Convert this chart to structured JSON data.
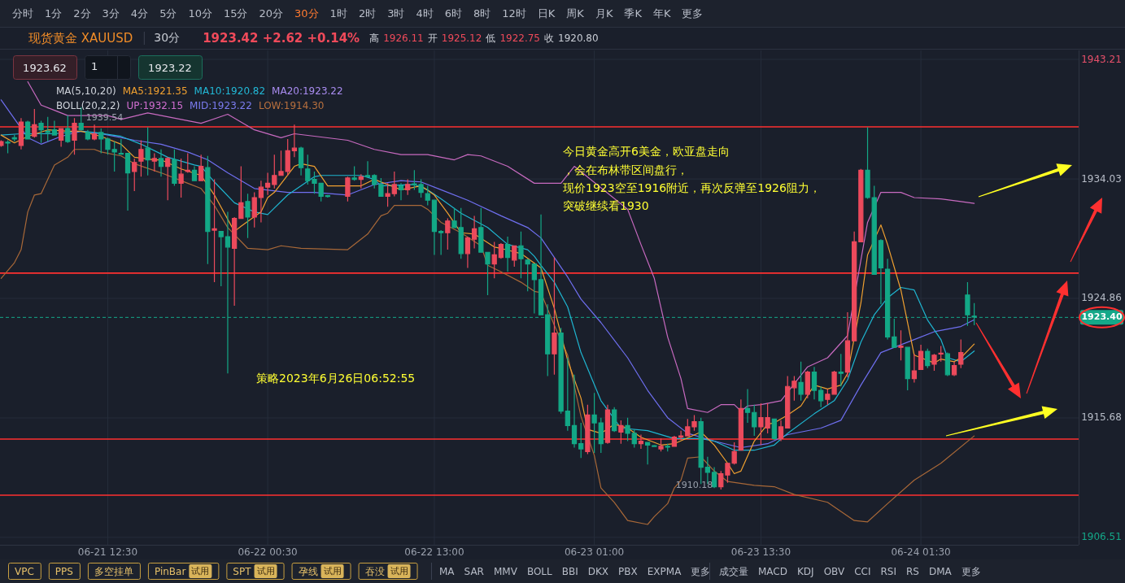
{
  "chart_data": {
    "type": "candlestick",
    "title": "现货黄金 XAUUSD",
    "subtitle": "30分",
    "grid": true,
    "xlim": [
      "2023-06-21T04:25",
      "2023-06-24T13:20"
    ],
    "ylim": [
      1905.94,
      1943.9
    ],
    "xticks": [
      {
        "value": "2023-06-21T12:30",
        "label": "06-21 12:30"
      },
      {
        "value": "2023-06-22T00:30",
        "label": "06-22 00:30"
      },
      {
        "value": "2023-06-22T13:00",
        "label": "06-22 13:00"
      },
      {
        "value": "2023-06-23T01:00",
        "label": "06-23 01:00"
      },
      {
        "value": "2023-06-23T13:30",
        "label": "06-23 13:30"
      },
      {
        "value": "2023-06-24T01:30",
        "label": "06-24 01:30"
      }
    ],
    "yticks": [
      1943.21,
      1934.03,
      1924.86,
      1915.68,
      1906.51
    ],
    "x": [
      "2023-06-21T04:30",
      "2023-06-21T05:00",
      "2023-06-21T05:30",
      "2023-06-21T06:00",
      "2023-06-21T06:30",
      "2023-06-21T07:00",
      "2023-06-21T07:30",
      "2023-06-21T08:00",
      "2023-06-21T08:30",
      "2023-06-21T09:00",
      "2023-06-21T09:30",
      "2023-06-21T10:00",
      "2023-06-21T10:30",
      "2023-06-21T11:00",
      "2023-06-21T11:30",
      "2023-06-21T12:00",
      "2023-06-21T12:30",
      "2023-06-21T13:00",
      "2023-06-21T13:30",
      "2023-06-21T14:00",
      "2023-06-21T14:30",
      "2023-06-21T15:00",
      "2023-06-21T15:30",
      "2023-06-21T16:00",
      "2023-06-21T16:30",
      "2023-06-21T17:00",
      "2023-06-21T17:30",
      "2023-06-21T18:00",
      "2023-06-21T18:30",
      "2023-06-21T19:00",
      "2023-06-21T19:30",
      "2023-06-21T20:00",
      "2023-06-21T20:30",
      "2023-06-21T21:00",
      "2023-06-21T21:30",
      "2023-06-21T22:00",
      "2023-06-21T22:30",
      "2023-06-21T23:00",
      "2023-06-21T23:30",
      "2023-06-22T00:00",
      "2023-06-22T00:30",
      "2023-06-22T01:00",
      "2023-06-22T01:30",
      "2023-06-22T02:00",
      "2023-06-22T02:30",
      "2023-06-22T03:00",
      "2023-06-22T03:30",
      "2023-06-22T04:00",
      "2023-06-22T04:30",
      "2023-06-22T05:00",
      "2023-06-22T06:30",
      "2023-06-22T07:00",
      "2023-06-22T07:30",
      "2023-06-22T08:00",
      "2023-06-22T08:30",
      "2023-06-22T09:00",
      "2023-06-22T09:30",
      "2023-06-22T10:00",
      "2023-06-22T10:30",
      "2023-06-22T11:00",
      "2023-06-22T11:30",
      "2023-06-22T12:00",
      "2023-06-22T12:30",
      "2023-06-22T13:00",
      "2023-06-22T13:30",
      "2023-06-22T14:00",
      "2023-06-22T14:30",
      "2023-06-22T15:00",
      "2023-06-22T15:30",
      "2023-06-22T16:00",
      "2023-06-22T16:30",
      "2023-06-22T17:00",
      "2023-06-22T17:30",
      "2023-06-22T18:00",
      "2023-06-22T18:30",
      "2023-06-22T19:00",
      "2023-06-22T19:30",
      "2023-06-22T20:00",
      "2023-06-22T20:30",
      "2023-06-22T21:00",
      "2023-06-22T21:30",
      "2023-06-22T22:00",
      "2023-06-22T22:30",
      "2023-06-22T23:00",
      "2023-06-22T23:30",
      "2023-06-23T00:00",
      "2023-06-23T00:30",
      "2023-06-23T01:00",
      "2023-06-23T01:30",
      "2023-06-23T02:00",
      "2023-06-23T02:30",
      "2023-06-23T03:00",
      "2023-06-23T03:30",
      "2023-06-23T04:00",
      "2023-06-23T04:30",
      "2023-06-23T05:00",
      "2023-06-23T05:30",
      "2023-06-23T06:00",
      "2023-06-23T06:30",
      "2023-06-23T07:00",
      "2023-06-23T07:30",
      "2023-06-23T08:00",
      "2023-06-23T08:30",
      "2023-06-23T09:00",
      "2023-06-23T09:30",
      "2023-06-23T10:00",
      "2023-06-23T10:30",
      "2023-06-23T11:00",
      "2023-06-23T11:30",
      "2023-06-23T12:00",
      "2023-06-23T12:30",
      "2023-06-23T13:00",
      "2023-06-23T13:30",
      "2023-06-23T14:00",
      "2023-06-23T14:30",
      "2023-06-23T15:00",
      "2023-06-23T15:30",
      "2023-06-23T16:00",
      "2023-06-23T16:30",
      "2023-06-23T17:00",
      "2023-06-23T17:30",
      "2023-06-23T18:00",
      "2023-06-23T18:30",
      "2023-06-23T19:00",
      "2023-06-23T19:30",
      "2023-06-23T20:00",
      "2023-06-23T20:30",
      "2023-06-23T21:00",
      "2023-06-23T21:30",
      "2023-06-23T22:00",
      "2023-06-23T22:30",
      "2023-06-23T23:00",
      "2023-06-23T23:30",
      "2023-06-24T00:00",
      "2023-06-24T00:30",
      "2023-06-24T01:00",
      "2023-06-24T01:30",
      "2023-06-24T02:00",
      "2023-06-24T02:30",
      "2023-06-24T03:00",
      "2023-06-24T03:30",
      "2023-06-24T04:00",
      "2023-06-24T04:30",
      "2023-06-24T05:00",
      "2023-06-24T05:30"
    ],
    "ohlc": [
      [
        1936.6,
        1937.0,
        1936.5,
        1936.9
      ],
      [
        1936.85,
        1937.0,
        1936.0,
        1936.8
      ],
      [
        1937.2,
        1937.4,
        1936.9,
        1937.1
      ],
      [
        1936.6,
        1938.7,
        1936.3,
        1938.4
      ],
      [
        1938.4,
        1938.5,
        1937.1,
        1937.1
      ],
      [
        1937.3,
        1939.4,
        1937.2,
        1938.2
      ],
      [
        1938.3,
        1938.5,
        1936.8,
        1937.8
      ],
      [
        1937.7,
        1938.8,
        1936.9,
        1937.6
      ],
      [
        1937.8,
        1938.5,
        1937.4,
        1937.4
      ],
      [
        1937.0,
        1937.9,
        1936.5,
        1937.9
      ],
      [
        1937.9,
        1938.9,
        1936.8,
        1936.9
      ],
      [
        1937.0,
        1938.7,
        1935.9,
        1938.3
      ],
      [
        1938.3,
        1939.54,
        1937.8,
        1937.8
      ],
      [
        1937.6,
        1937.8,
        1937.0,
        1937.1
      ],
      [
        1937.1,
        1938.2,
        1937.0,
        1937.5
      ],
      [
        1937.6,
        1937.9,
        1936.0,
        1937.1
      ],
      [
        1937.1,
        1937.2,
        1935.9,
        1936.3
      ],
      [
        1936.3,
        1936.9,
        1934.6,
        1936.1
      ],
      [
        1936.0,
        1937.1,
        1935.9,
        1935.95
      ],
      [
        1936.0,
        1936.0,
        1931.6,
        1934.5
      ],
      [
        1934.6,
        1935.6,
        1933.1,
        1935.3
      ],
      [
        1935.4,
        1937.0,
        1934.2,
        1936.3
      ],
      [
        1936.4,
        1938.0,
        1934.3,
        1935.5
      ],
      [
        1935.4,
        1936.0,
        1934.6,
        1935.6
      ],
      [
        1935.6,
        1936.3,
        1934.2,
        1935.0
      ],
      [
        1935.0,
        1935.7,
        1932.4,
        1935.6
      ],
      [
        1935.5,
        1936.3,
        1933.5,
        1933.7
      ],
      [
        1933.7,
        1935.6,
        1932.6,
        1934.4
      ],
      [
        1934.6,
        1936.0,
        1934.5,
        1934.7
      ],
      [
        1934.7,
        1935.0,
        1933.9,
        1933.9
      ],
      [
        1933.9,
        1935.9,
        1933.9,
        1935.0
      ],
      [
        1934.9,
        1935.8,
        1927.5,
        1930.0
      ],
      [
        1930.1,
        1934.0,
        1926.1,
        1930.2
      ],
      [
        1930.0,
        1930.0,
        1925.8,
        1929.6
      ],
      [
        1929.6,
        1931.5,
        1919.1,
        1928.8
      ],
      [
        1928.7,
        1931.1,
        1924.3,
        1931.0
      ],
      [
        1931.0,
        1935.0,
        1931.0,
        1932.2
      ],
      [
        1932.3,
        1932.9,
        1929.5,
        1931.1
      ],
      [
        1931.1,
        1933.0,
        1930.3,
        1932.6
      ],
      [
        1932.6,
        1933.9,
        1930.7,
        1933.4
      ],
      [
        1933.4,
        1934.5,
        1932.8,
        1933.7
      ],
      [
        1933.6,
        1935.9,
        1933.3,
        1934.3
      ],
      [
        1934.3,
        1936.2,
        1934.3,
        1934.6
      ],
      [
        1934.6,
        1937.1,
        1934.3,
        1936.2
      ],
      [
        1936.2,
        1938.2,
        1935.7,
        1936.4
      ],
      [
        1936.4,
        1936.5,
        1934.3,
        1934.9
      ],
      [
        1934.8,
        1935.9,
        1933.6,
        1933.9
      ],
      [
        1934.0,
        1934.6,
        1932.9,
        1933.7
      ],
      [
        1933.7,
        1933.7,
        1932.3,
        1932.7
      ],
      [
        1932.75,
        1932.8,
        1932.6,
        1932.7
      ],
      [
        1932.7,
        1934.2,
        1932.3,
        1934.1
      ],
      [
        1934.1,
        1935.0,
        1933.9,
        1934.0
      ],
      [
        1934.0,
        1934.4,
        1933.3,
        1934.2
      ],
      [
        1934.3,
        1935.4,
        1934.2,
        1934.2
      ],
      [
        1934.3,
        1934.4,
        1933.3,
        1933.6
      ],
      [
        1933.6,
        1934.1,
        1932.7,
        1932.7
      ],
      [
        1932.7,
        1933.7,
        1931.9,
        1932.9
      ],
      [
        1932.9,
        1934.6,
        1932.7,
        1933.6
      ],
      [
        1933.5,
        1933.7,
        1932.4,
        1933.2
      ],
      [
        1933.2,
        1934.0,
        1932.8,
        1933.6
      ],
      [
        1933.65,
        1934.7,
        1933.2,
        1933.6
      ],
      [
        1933.6,
        1934.0,
        1932.6,
        1933.0
      ],
      [
        1932.9,
        1933.5,
        1932.0,
        1932.4
      ],
      [
        1932.4,
        1932.4,
        1928.2,
        1930.0
      ],
      [
        1930.0,
        1930.1,
        1928.2,
        1929.9
      ],
      [
        1929.9,
        1931.0,
        1928.6,
        1930.8
      ],
      [
        1930.8,
        1931.8,
        1930.3,
        1930.3
      ],
      [
        1930.3,
        1931.8,
        1927.9,
        1928.3
      ],
      [
        1928.3,
        1929.6,
        1927.2,
        1929.5
      ],
      [
        1929.4,
        1931.2,
        1928.7,
        1930.2
      ],
      [
        1930.3,
        1931.8,
        1928.4,
        1928.4
      ],
      [
        1928.4,
        1928.4,
        1925.1,
        1927.5
      ],
      [
        1927.5,
        1929.2,
        1926.4,
        1928.2
      ],
      [
        1928.0,
        1929.1,
        1927.9,
        1929.0
      ],
      [
        1929.0,
        1929.6,
        1926.9,
        1928.0
      ],
      [
        1927.8,
        1928.9,
        1927.3,
        1928.9
      ],
      [
        1928.9,
        1930.0,
        1926.4,
        1927.9
      ],
      [
        1927.8,
        1927.9,
        1925.4,
        1927.5
      ],
      [
        1927.5,
        1927.5,
        1923.7,
        1926.3
      ],
      [
        1926.3,
        1931.3,
        1923.6,
        1923.6
      ],
      [
        1923.6,
        1924.4,
        1918.9,
        1920.6
      ],
      [
        1920.6,
        1928.0,
        1919.0,
        1922.2
      ],
      [
        1922.2,
        1922.6,
        1916.0,
        1916.2
      ],
      [
        1916.2,
        1920.3,
        1914.7,
        1915.1
      ],
      [
        1915.1,
        1919.0,
        1913.4,
        1913.7
      ],
      [
        1913.7,
        1915.3,
        1912.6,
        1913.3
      ],
      [
        1913.1,
        1916.7,
        1912.9,
        1915.9
      ],
      [
        1915.9,
        1917.6,
        1913.0,
        1915.3
      ],
      [
        1915.3,
        1915.7,
        1913.0,
        1913.7
      ],
      [
        1913.8,
        1916.7,
        1913.7,
        1916.3
      ],
      [
        1916.3,
        1916.5,
        1914.6,
        1914.7
      ],
      [
        1914.6,
        1915.5,
        1913.7,
        1915.1
      ],
      [
        1915.1,
        1915.7,
        1913.9,
        1914.5
      ],
      [
        1914.5,
        1914.8,
        1913.4,
        1913.7
      ],
      [
        1913.7,
        1914.4,
        1913.3,
        1913.9
      ],
      [
        1913.8,
        1913.8,
        1912.1,
        1913.6
      ],
      [
        1913.55,
        1913.6,
        1913.5,
        1913.5
      ],
      [
        1913.3,
        1914.1,
        1913.1,
        1913.5
      ],
      [
        1913.5,
        1913.7,
        1913.1,
        1913.45
      ],
      [
        1913.5,
        1914.3,
        1913.5,
        1914.2
      ],
      [
        1914.2,
        1914.7,
        1914.0,
        1914.3
      ],
      [
        1914.3,
        1915.6,
        1914.3,
        1915.0
      ],
      [
        1915.0,
        1915.9,
        1914.7,
        1915.4
      ],
      [
        1915.4,
        1915.7,
        1910.6,
        1911.9
      ],
      [
        1911.9,
        1912.7,
        1910.6,
        1911.5
      ],
      [
        1911.5,
        1911.9,
        1910.3,
        1910.4
      ],
      [
        1910.4,
        1911.6,
        1910.18,
        1911.4
      ],
      [
        1911.3,
        1912.2,
        1910.7,
        1912.2
      ],
      [
        1912.2,
        1913.8,
        1912.1,
        1913.1
      ],
      [
        1913.2,
        1917.1,
        1913.2,
        1916.4
      ],
      [
        1916.4,
        1917.9,
        1915.3,
        1916.1
      ],
      [
        1916.1,
        1916.7,
        1914.3,
        1915.0
      ],
      [
        1915.0,
        1916.8,
        1913.6,
        1915.7
      ],
      [
        1914.9,
        1916.8,
        1914.5,
        1915.7
      ],
      [
        1915.6,
        1915.6,
        1914.0,
        1914.1
      ],
      [
        1914.1,
        1915.5,
        1913.9,
        1915.0
      ],
      [
        1914.9,
        1918.9,
        1914.9,
        1918.1
      ],
      [
        1918.0,
        1918.9,
        1917.0,
        1918.5
      ],
      [
        1918.4,
        1920.0,
        1917.0,
        1917.5
      ],
      [
        1917.5,
        1919.3,
        1917.2,
        1919.2
      ],
      [
        1919.2,
        1919.6,
        1917.1,
        1917.8
      ],
      [
        1917.8,
        1918.1,
        1916.5,
        1917.0
      ],
      [
        1917.1,
        1917.9,
        1916.7,
        1917.5
      ],
      [
        1917.5,
        1919.3,
        1917.5,
        1919.2
      ],
      [
        1919.2,
        1920.6,
        1918.1,
        1919.1
      ],
      [
        1919.2,
        1923.8,
        1918.8,
        1921.6
      ],
      [
        1921.6,
        1930.0,
        1921.6,
        1929.2
      ],
      [
        1929.2,
        1934.8,
        1929.2,
        1934.7
      ],
      [
        1934.7,
        1938.0,
        1932.5,
        1932.6
      ],
      [
        1932.6,
        1933.5,
        1926.7,
        1926.7
      ],
      [
        1929.3,
        1929.4,
        1924.4,
        1927.2
      ],
      [
        1927.1,
        1927.9,
        1921.7,
        1921.9
      ],
      [
        1921.9,
        1923.3,
        1921.1,
        1921.1
      ],
      [
        1921.1,
        1922.4,
        1920.1,
        1921.2
      ],
      [
        1921.1,
        1921.1,
        1917.8,
        1918.7
      ],
      [
        1918.7,
        1920.6,
        1918.4,
        1919.3
      ],
      [
        1919.4,
        1921.3,
        1919.4,
        1920.8
      ],
      [
        1920.8,
        1921.0,
        1919.5,
        1919.7
      ],
      [
        1919.8,
        1920.6,
        1919.3,
        1920.5
      ],
      [
        1920.6,
        1921.2,
        1920.0,
        1920.65
      ],
      [
        1920.6,
        1920.7,
        1918.9,
        1919.0
      ],
      [
        1919.0,
        1920.0,
        1918.9,
        1919.7
      ],
      [
        1919.8,
        1921.7,
        1919.5,
        1920.7
      ],
      [
        1925.12,
        1926.11,
        1922.75,
        1923.6
      ],
      [
        1923.5,
        1924.5,
        1922.8,
        1923.42
      ]
    ],
    "series": [
      {
        "type": "line",
        "color": "#c86ac0",
        "x": [
          "2023-06-21T06:30",
          "2023-06-21T07:30",
          "2023-06-21T08:30",
          "2023-06-21T09:30",
          "2023-06-21T12:30",
          "2023-06-21T13:30",
          "2023-06-21T15:30",
          "2023-06-21T19:30",
          "2023-06-21T21:30",
          "2023-06-21T23:30",
          "2023-06-22T01:30",
          "2023-06-22T02:30",
          "2023-06-22T06:30",
          "2023-06-22T08:30",
          "2023-06-22T10:30",
          "2023-06-22T12:30",
          "2023-06-22T14:30",
          "2023-06-22T15:30",
          "2023-06-22T16:30",
          "2023-06-22T18:30",
          "2023-06-22T20:30",
          "2023-06-22T22:30",
          "2023-06-22T23:30",
          "2023-06-23T03:30",
          "2023-06-23T04:30",
          "2023-06-23T05:30",
          "2023-06-23T06:30",
          "2023-06-23T07:30",
          "2023-06-23T08:00",
          "2023-06-23T09:30",
          "2023-06-23T10:30",
          "2023-06-23T11:30",
          "2023-06-23T12:00",
          "2023-06-23T12:30",
          "2023-06-23T13:30",
          "2023-06-23T15:00",
          "2023-06-23T17:00",
          "2023-06-23T18:30",
          "2023-06-23T20:00",
          "2023-06-23T21:30",
          "2023-06-23T22:30",
          "2023-06-24T00:00",
          "2023-06-24T01:00",
          "2023-06-24T03:00",
          "2023-06-24T04:30",
          "2023-06-24T05:30"
        ],
        "values": [
          1941.5,
          1939.7,
          1939.3,
          1938.9,
          1938.9,
          1938.6,
          1939.1,
          1938.3,
          1939.0,
          1937.8,
          1937.2,
          1937.5,
          1937.0,
          1936.3,
          1935.9,
          1935.9,
          1935.5,
          1935.9,
          1935.8,
          1935.0,
          1933.7,
          1933.7,
          1935.0,
          1931.7,
          1929.0,
          1926.4,
          1921.9,
          1918.7,
          1916.4,
          1916.1,
          1916.7,
          1916.7,
          1916.2,
          1916.6,
          1916.7,
          1917.0,
          1919.6,
          1920.3,
          1922.0,
          1930.7,
          1933.0,
          1933.0,
          1932.6,
          1932.5,
          1932.3,
          1932.15
        ]
      },
      {
        "type": "line",
        "color": "#6f6ff0",
        "x": [
          "2023-06-21T04:30",
          "2023-06-21T06:30",
          "2023-06-21T07:30",
          "2023-06-21T09:00",
          "2023-06-21T10:30",
          "2023-06-21T12:00",
          "2023-06-21T13:00",
          "2023-06-21T14:30",
          "2023-06-21T16:30",
          "2023-06-21T18:30",
          "2023-06-21T20:00",
          "2023-06-21T21:30",
          "2023-06-21T23:30",
          "2023-06-22T02:00",
          "2023-06-22T04:00",
          "2023-06-22T06:30",
          "2023-06-22T08:30",
          "2023-06-22T10:30",
          "2023-06-22T12:00",
          "2023-06-22T13:30",
          "2023-06-22T15:30",
          "2023-06-22T18:00",
          "2023-06-22T20:00",
          "2023-06-22T21:00",
          "2023-06-22T23:00",
          "2023-06-23T00:00",
          "2023-06-23T01:30",
          "2023-06-23T03:30",
          "2023-06-23T05:00",
          "2023-06-23T06:30",
          "2023-06-23T08:00",
          "2023-06-23T10:00",
          "2023-06-23T12:00",
          "2023-06-23T14:00",
          "2023-06-23T15:30",
          "2023-06-23T18:00",
          "2023-06-23T19:30",
          "2023-06-23T21:00",
          "2023-06-23T22:30",
          "2023-06-24T01:00",
          "2023-06-24T02:30",
          "2023-06-24T04:30",
          "2023-06-24T05:30"
        ],
        "values": [
          1940.1,
          1937.2,
          1936.7,
          1937.3,
          1937.7,
          1937.5,
          1937.3,
          1937.0,
          1936.7,
          1936.1,
          1935.5,
          1934.5,
          1933.3,
          1933.0,
          1933.0,
          1932.8,
          1933.6,
          1933.9,
          1933.8,
          1933.2,
          1932.4,
          1931.2,
          1930.3,
          1929.5,
          1926.5,
          1924.8,
          1923.0,
          1920.3,
          1917.8,
          1915.7,
          1914.5,
          1913.9,
          1913.4,
          1913.7,
          1914.4,
          1914.9,
          1915.5,
          1918.2,
          1920.7,
          1921.7,
          1922.3,
          1922.7,
          1923.22
        ]
      },
      {
        "type": "line",
        "color": "#a86838",
        "x": [
          "2023-06-21T04:30",
          "2023-06-21T05:30",
          "2023-06-21T06:00",
          "2023-06-21T06:30",
          "2023-06-21T07:00",
          "2023-06-21T07:30",
          "2023-06-21T08:30",
          "2023-06-21T09:30",
          "2023-06-21T10:00",
          "2023-06-21T11:30",
          "2023-06-21T12:00",
          "2023-06-21T13:30",
          "2023-06-21T14:30",
          "2023-06-21T16:30",
          "2023-06-21T18:30",
          "2023-06-21T19:30",
          "2023-06-21T20:30",
          "2023-06-21T21:30",
          "2023-06-21T23:00",
          "2023-06-22T00:30",
          "2023-06-22T01:30",
          "2023-06-22T03:00",
          "2023-06-22T06:30",
          "2023-06-22T08:00",
          "2023-06-22T09:00",
          "2023-06-22T09:30",
          "2023-06-22T10:00",
          "2023-06-22T12:00",
          "2023-06-22T12:30",
          "2023-06-22T13:30",
          "2023-06-22T15:00",
          "2023-06-22T16:30",
          "2023-06-22T17:00",
          "2023-06-22T18:00",
          "2023-06-22T19:30",
          "2023-06-22T20:30",
          "2023-06-22T21:00",
          "2023-06-22T22:00",
          "2023-06-22T23:00",
          "2023-06-23T00:00",
          "2023-06-23T01:00",
          "2023-06-23T01:30",
          "2023-06-23T02:30",
          "2023-06-23T03:30",
          "2023-06-23T05:00",
          "2023-06-23T05:30",
          "2023-06-23T06:30",
          "2023-06-23T07:00",
          "2023-06-23T07:30",
          "2023-06-23T08:00",
          "2023-06-23T09:00",
          "2023-06-23T10:00",
          "2023-06-23T11:00",
          "2023-06-23T13:00",
          "2023-06-23T14:30",
          "2023-06-23T16:00",
          "2023-06-23T18:30",
          "2023-06-23T20:30",
          "2023-06-23T21:30",
          "2023-06-23T23:00",
          "2023-06-24T01:00",
          "2023-06-24T03:00",
          "2023-06-24T05:30"
        ],
        "values": [
          1926.4,
          1927.6,
          1928.6,
          1931.5,
          1932.8,
          1932.9,
          1935.1,
          1935.7,
          1936.3,
          1936.3,
          1936.1,
          1935.8,
          1935.2,
          1934.5,
          1933.7,
          1933.3,
          1932.0,
          1930.3,
          1928.7,
          1928.6,
          1928.9,
          1928.7,
          1928.6,
          1929.8,
          1931.2,
          1931.4,
          1932.0,
          1932.0,
          1931.7,
          1930.7,
          1929.9,
          1928.9,
          1927.4,
          1926.9,
          1926.1,
          1925.4,
          1925.3,
          1922.8,
          1920.5,
          1915.8,
          1912.8,
          1910.3,
          1909.2,
          1907.8,
          1907.5,
          1908.1,
          1909.1,
          1910.3,
          1910.9,
          1912.6,
          1912.7,
          1911.6,
          1910.8,
          1910.5,
          1910.4,
          1909.8,
          1909.2,
          1907.8,
          1907.7,
          1909.1,
          1910.9,
          1912.2,
          1914.3
        ]
      },
      {
        "type": "line",
        "color": "#1fb5d0",
        "x": [
          "2023-06-21T04:30",
          "2023-06-21T06:00",
          "2023-06-21T08:30",
          "2023-06-21T10:30",
          "2023-06-21T11:30",
          "2023-06-21T13:30",
          "2023-06-21T15:00",
          "2023-06-21T17:00",
          "2023-06-21T19:00",
          "2023-06-21T19:30",
          "2023-06-21T20:30",
          "2023-06-21T22:00",
          "2023-06-21T23:30",
          "2023-06-22T00:30",
          "2023-06-22T02:00",
          "2023-06-22T04:00",
          "2023-06-22T04:30",
          "2023-06-22T07:30",
          "2023-06-22T08:30",
          "2023-06-22T09:00",
          "2023-06-22T11:30",
          "2023-06-22T12:30",
          "2023-06-22T13:30",
          "2023-06-22T15:00",
          "2023-06-22T17:00",
          "2023-06-22T18:30",
          "2023-06-22T20:00",
          "2023-06-22T20:30",
          "2023-06-22T21:00",
          "2023-06-22T22:00",
          "2023-06-22T23:00",
          "2023-06-23T00:00",
          "2023-06-23T01:30",
          "2023-06-23T03:00",
          "2023-06-23T05:00",
          "2023-06-23T07:00",
          "2023-06-23T09:00",
          "2023-06-23T10:00",
          "2023-06-23T11:30",
          "2023-06-23T13:00",
          "2023-06-23T14:30",
          "2023-06-23T15:30",
          "2023-06-23T17:30",
          "2023-06-23T19:00",
          "2023-06-23T20:00",
          "2023-06-23T21:00",
          "2023-06-23T22:00",
          "2023-06-23T23:00",
          "2023-06-24T00:00",
          "2023-06-24T01:00",
          "2023-06-24T02:00",
          "2023-06-24T03:00",
          "2023-06-24T03:30",
          "2023-06-24T04:30",
          "2023-06-24T05:30"
        ],
        "values": [
          1937.4,
          1937.5,
          1937.5,
          1937.7,
          1937.6,
          1937.3,
          1936.7,
          1935.7,
          1935.1,
          1935.0,
          1933.8,
          1932.2,
          1931.5,
          1931.3,
          1932.8,
          1934.2,
          1934.3,
          1934.3,
          1934.0,
          1933.5,
          1933.6,
          1933.2,
          1932.5,
          1931.4,
          1930.3,
          1929.0,
          1928.6,
          1928.1,
          1927.4,
          1926.1,
          1924.2,
          1920.7,
          1917.0,
          1914.9,
          1914.7,
          1914.1,
          1914.1,
          1913.9,
          1913.2,
          1913.2,
          1913.6,
          1914.5,
          1916.0,
          1917.0,
          1918.6,
          1921.5,
          1923.6,
          1924.9,
          1925.7,
          1925.5,
          1923.2,
          1921.7,
          1920.3,
          1920.0,
          1920.82
        ]
      },
      {
        "type": "line",
        "color": "#f0a030",
        "x": [
          "2023-06-21T04:30",
          "2023-06-21T05:30",
          "2023-06-21T06:30",
          "2023-06-21T08:00",
          "2023-06-21T09:30",
          "2023-06-21T10:30",
          "2023-06-21T12:00",
          "2023-06-21T13:30",
          "2023-06-21T14:30",
          "2023-06-21T16:00",
          "2023-06-21T16:30",
          "2023-06-21T18:00",
          "2023-06-21T19:30",
          "2023-06-21T20:30",
          "2023-06-21T22:00",
          "2023-06-21T22:30",
          "2023-06-22T00:00",
          "2023-06-22T00:30",
          "2023-06-22T01:00",
          "2023-06-22T02:30",
          "2023-06-22T03:00",
          "2023-06-22T04:00",
          "2023-06-22T05:00",
          "2023-06-22T07:30",
          "2023-06-22T08:30",
          "2023-06-22T09:30",
          "2023-06-22T10:30",
          "2023-06-22T12:00",
          "2023-06-22T13:00",
          "2023-06-22T14:00",
          "2023-06-22T15:00",
          "2023-06-22T16:00",
          "2023-06-22T17:30",
          "2023-06-22T18:00",
          "2023-06-22T19:30",
          "2023-06-22T21:00",
          "2023-06-22T22:00",
          "2023-06-22T23:00",
          "2023-06-23T00:00",
          "2023-06-23T00:30",
          "2023-06-23T01:30",
          "2023-06-23T02:30",
          "2023-06-23T03:30",
          "2023-06-23T04:30",
          "2023-06-23T06:00",
          "2023-06-23T07:00",
          "2023-06-23T09:00",
          "2023-06-23T10:00",
          "2023-06-23T11:00",
          "2023-06-23T11:30",
          "2023-06-23T12:00",
          "2023-06-23T13:00",
          "2023-06-23T14:00",
          "2023-06-23T14:30",
          "2023-06-23T15:30",
          "2023-06-23T16:30",
          "2023-06-23T17:30",
          "2023-06-23T18:30",
          "2023-06-23T19:30",
          "2023-06-23T20:00",
          "2023-06-23T21:00",
          "2023-06-23T21:30",
          "2023-06-23T22:30",
          "2023-06-23T23:00",
          "2023-06-24T00:00",
          "2023-06-24T01:00",
          "2023-06-24T02:30",
          "2023-06-24T03:00",
          "2023-06-24T04:00",
          "2023-06-24T04:30",
          "2023-06-24T05:30"
        ],
        "values": [
          1937.4,
          1936.8,
          1937.3,
          1937.8,
          1937.7,
          1937.7,
          1937.3,
          1936.7,
          1935.7,
          1935.5,
          1935.5,
          1934.8,
          1934.3,
          1932.8,
          1930.0,
          1930.4,
          1931.5,
          1932.6,
          1933.0,
          1935.0,
          1935.2,
          1935.0,
          1933.5,
          1933.5,
          1934.0,
          1933.6,
          1933.2,
          1933.5,
          1932.8,
          1931.4,
          1929.9,
          1929.8,
          1928.8,
          1928.7,
          1928.3,
          1927.2,
          1924.1,
          1920.1,
          1917.2,
          1914.8,
          1914.5,
          1915.2,
          1914.9,
          1914.2,
          1913.6,
          1913.7,
          1914.6,
          1913.6,
          1912.2,
          1911.4,
          1911.6,
          1913.9,
          1915.2,
          1915.3,
          1915.9,
          1916.6,
          1918.2,
          1917.9,
          1918.2,
          1919.1,
          1924.5,
          1928.2,
          1930.5,
          1929.0,
          1925.5,
          1920.5,
          1919.9,
          1920.2,
          1920.0,
          1920.3,
          1921.35
        ]
      }
    ],
    "ref_lines": [
      {
        "axis": "y",
        "value": 1938.03,
        "color": "#ff3030"
      },
      {
        "axis": "y",
        "value": 1926.8,
        "color": "#ff3030"
      },
      {
        "axis": "y",
        "value": 1914.06,
        "color": "#ff3030"
      },
      {
        "axis": "y",
        "value": 1909.75,
        "color": "#ff3030"
      },
      {
        "axis": "y",
        "value": 1923.4,
        "label": "1923.40",
        "color": "#14a889",
        "line_style": "dashed"
      }
    ],
    "annotations": [
      "分时 1分 2分 3分 4分 5分 10分 15分 20分 30分 1时 2时 3时 4时 6时 8时 12时 日K 周K 月K 季K 年K 更多",
      "1923.42 +2.62 +0.14%",
      "高 1926.11 开 1925.12 低 1922.75 收 1920.80",
      "1923.62",
      "1",
      "1923.22",
      "MA(5,10,20)",
      "MA5:1921.35",
      "MA10:1920.82",
      "MA20:1923.22",
      "BOLL(20,2,2)",
      "UP:1932.15",
      "MID:1923.22",
      "LOW:1914.30",
      "今日黄金高开6美金，欧亚盘走向",
      "，会在布林带区间盘行，",
      "现价1923空至1916附近，再次反弹至1926阻力，",
      "突破继续看1930",
      "策略2023年6月26日06:52:55",
      {
        "text": "1939.54",
        "x": "2023-06-21T10:30",
        "y": 1939.54
      },
      {
        "text": "1910.18",
        "x": "2023-06-23T10:30",
        "y": 1910.18
      },
      "VPC",
      "PPS",
      "多空挂单",
      "PinBar",
      "试用",
      "SPT",
      "试用",
      "孕线",
      "试用",
      "吞没",
      "试用",
      "MA SAR MMV BOLL BBI DKX PBX EXPMA 更多",
      "成交量 MACD KDJ OBV CCI RSI RS DMA 更多"
    ]
  }
}
